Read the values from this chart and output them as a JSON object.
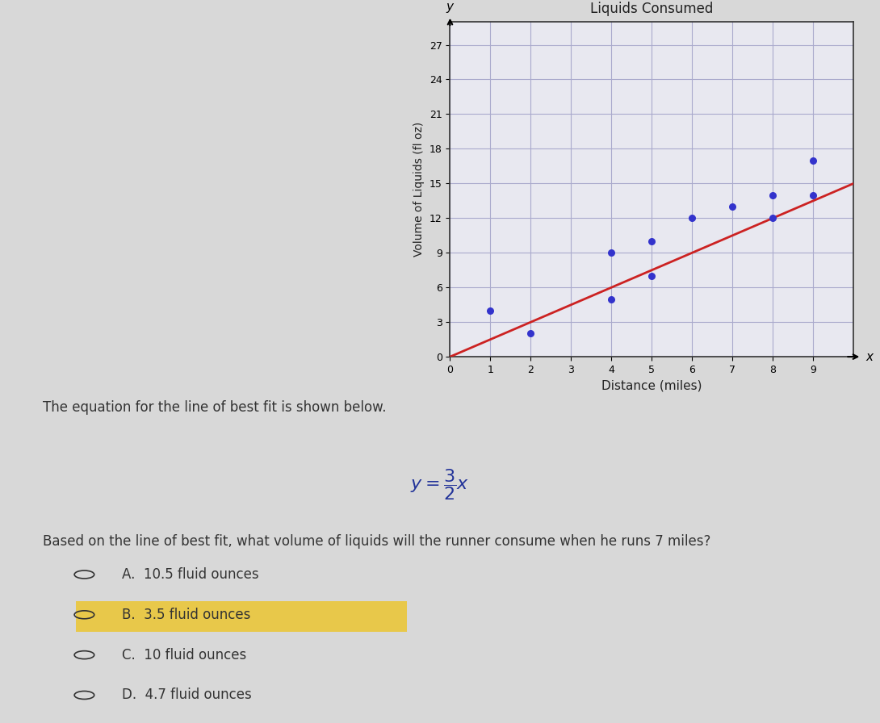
{
  "title": "Liquids Consumed",
  "xlabel": "Distance (miles)",
  "ylabel": "Volume of Liquids (fl oz)",
  "scatter_x": [
    1,
    2,
    4,
    4,
    5,
    5,
    6,
    7,
    8,
    8,
    9,
    9
  ],
  "scatter_y": [
    4,
    2,
    5,
    9,
    7,
    10,
    12,
    13,
    12,
    14,
    17,
    14
  ],
  "line_color": "#cc2222",
  "scatter_color": "#3333cc",
  "yticks": [
    0,
    3,
    6,
    9,
    12,
    15,
    18,
    21,
    24,
    27
  ],
  "xticks": [
    0,
    1,
    2,
    3,
    4,
    5,
    6,
    7,
    8,
    9
  ],
  "xlim": [
    0,
    10
  ],
  "ylim": [
    0,
    29
  ],
  "grid_color": "#aaaacc",
  "bg_color": "#e8e8f0",
  "plot_bg": "#e8e8f0",
  "equation_text": "$y = \\dfrac{3}{2}x$",
  "intro_text": "The equation for the line of best fit is shown below.",
  "question_text": "Based on the line of best fit, what volume of liquids will the runner consume when he runs 7 miles?",
  "choices": [
    "A.  10.5 fluid ounces",
    "B.  3.5 fluid ounces",
    "C.  10 fluid ounces",
    "D.  4.7 fluid ounces"
  ],
  "highlighted_choice": 1,
  "highlight_color": "#e8c84a",
  "text_color": "#333333",
  "overall_bg": "#d8d8d8"
}
